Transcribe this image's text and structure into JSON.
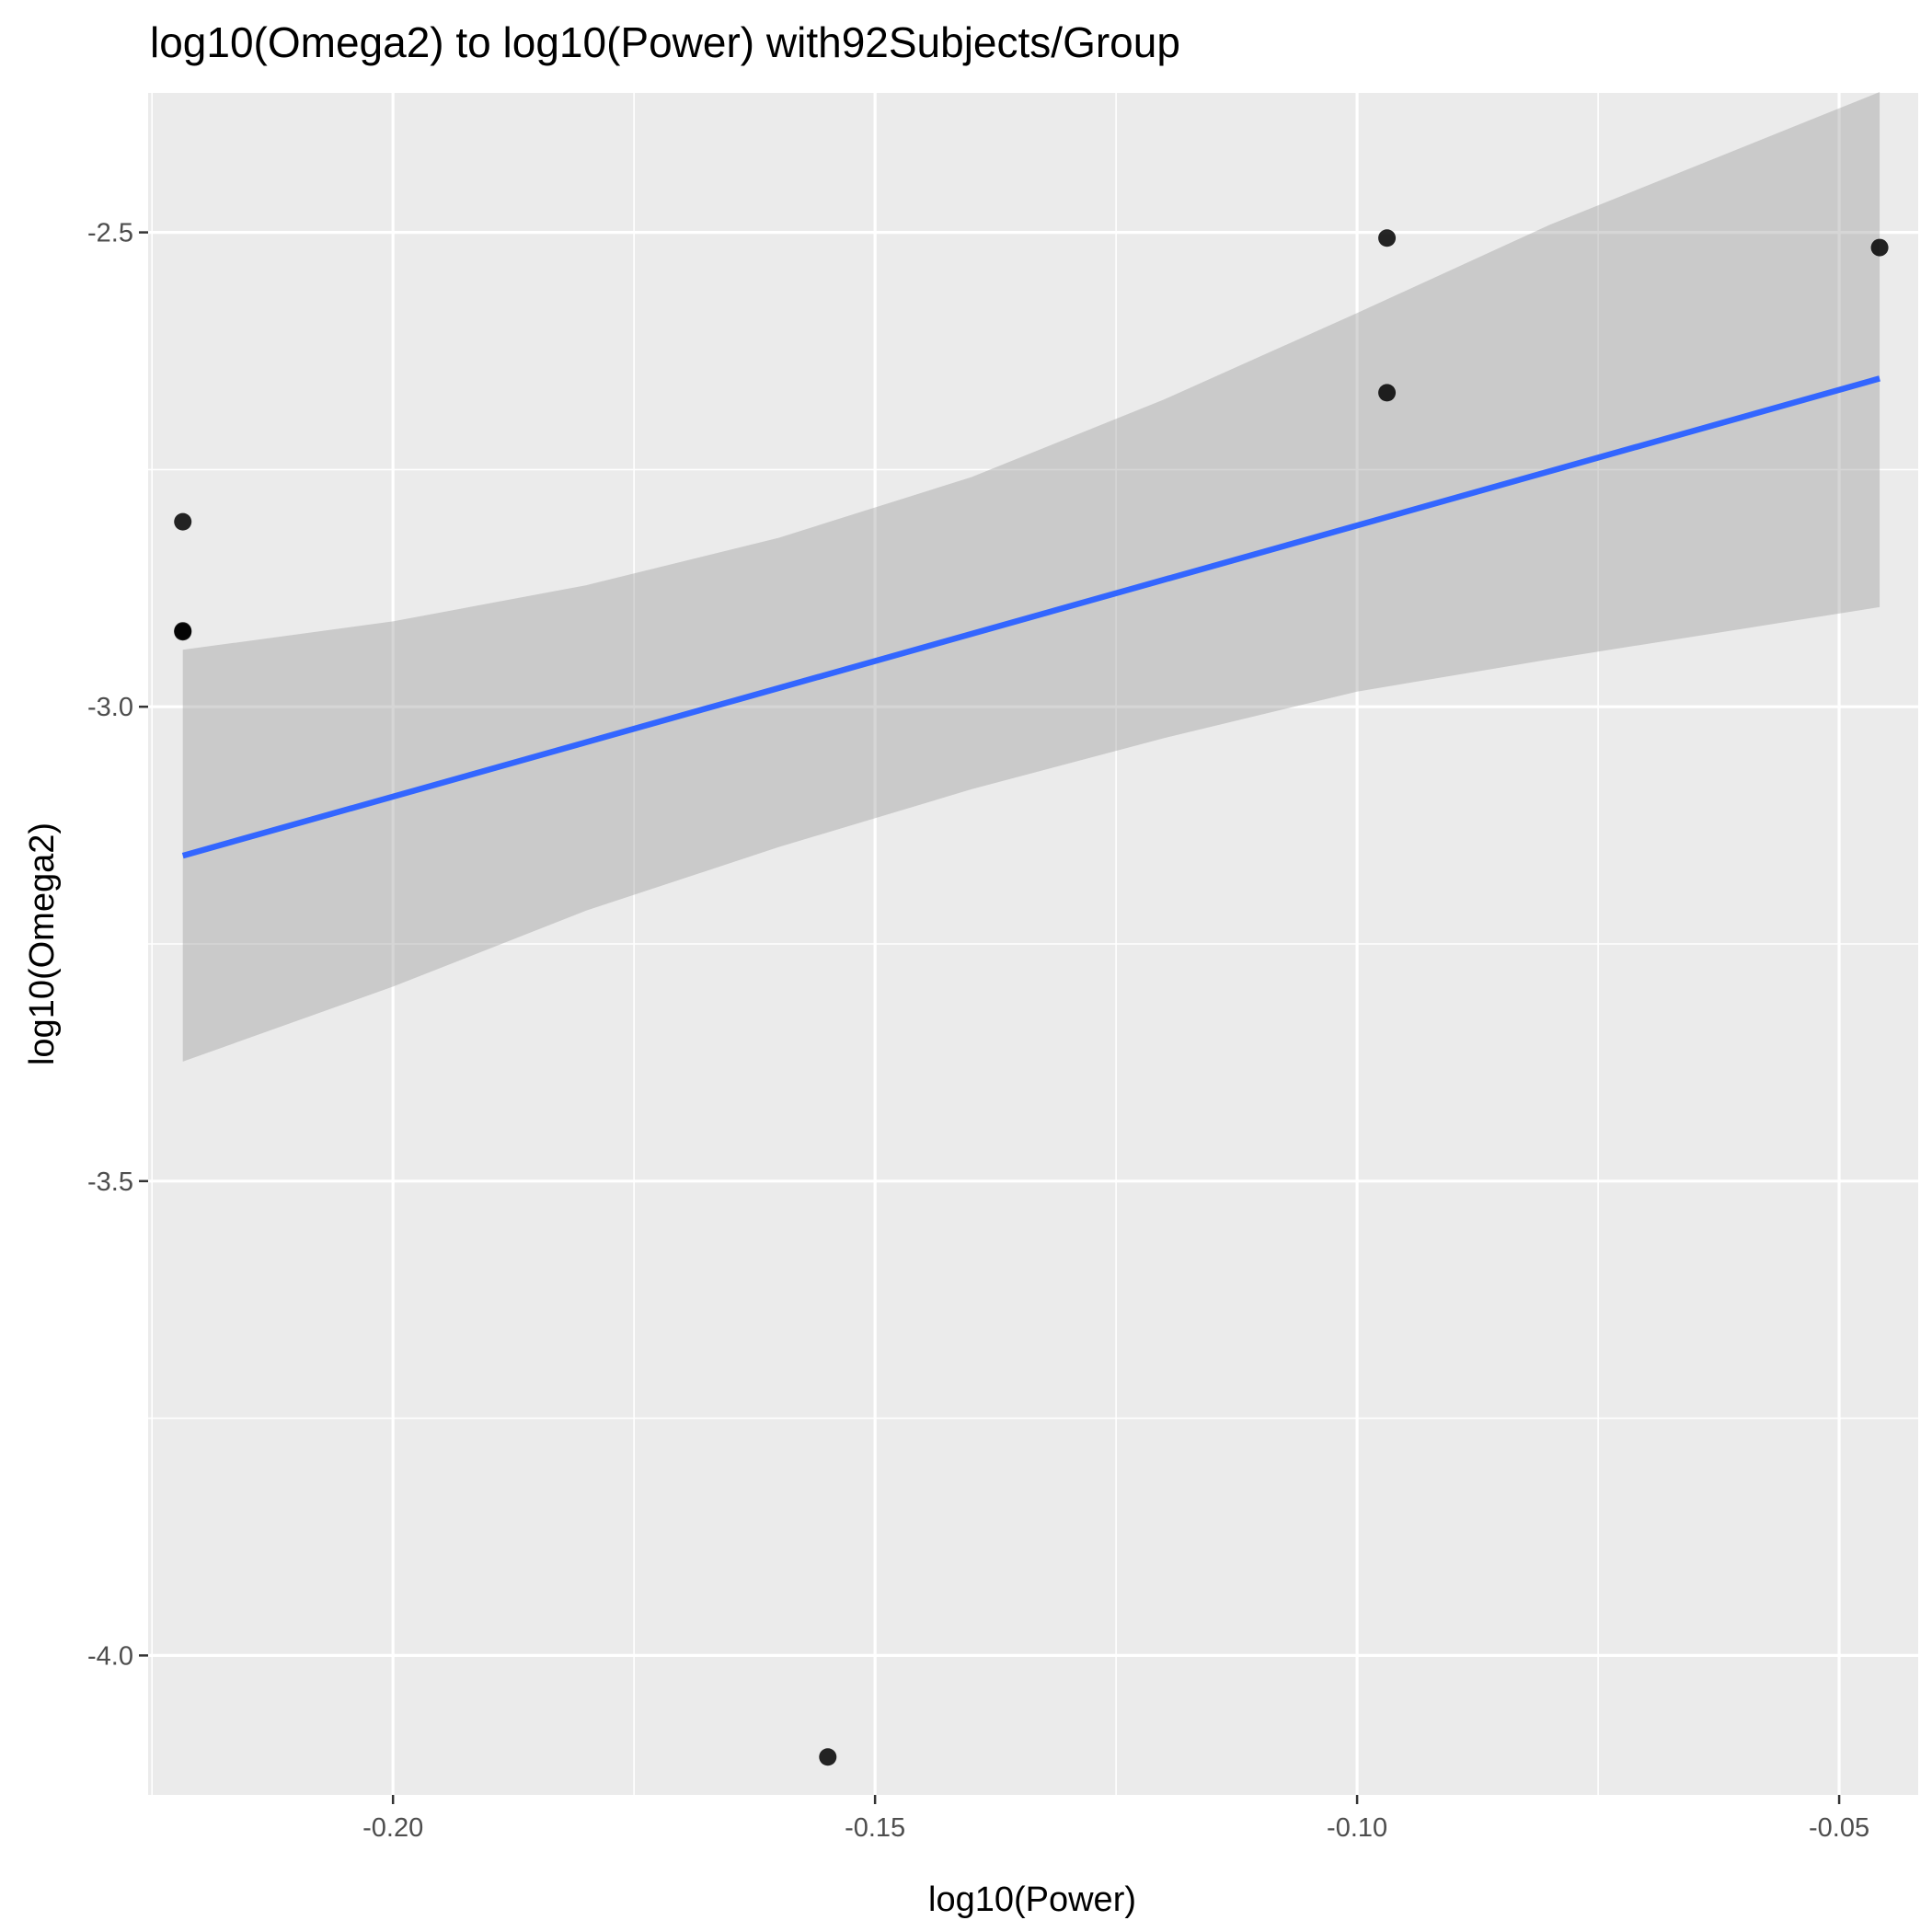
{
  "chart_data": {
    "type": "scatter",
    "title": "log10(Omega2) to log10(Power) with92Subjects/Group",
    "xlabel": "log10(Power)",
    "ylabel": "log10(Omega2)",
    "xlim": [
      -0.2254,
      -0.0418
    ],
    "ylim": [
      -4.147,
      -2.353
    ],
    "x_ticks": [
      -0.2,
      -0.15,
      -0.1,
      -0.05
    ],
    "x_tick_labels": [
      "-0.20",
      "-0.15",
      "-0.10",
      "-0.05"
    ],
    "y_ticks": [
      -4.0,
      -3.5,
      -3.0,
      -2.5
    ],
    "y_tick_labels": [
      "-4.0",
      "-3.5",
      "-3.0",
      "-2.5"
    ],
    "grid": true,
    "points": [
      {
        "x": -0.2218,
        "y": -2.805
      },
      {
        "x": -0.2218,
        "y": -2.92
      },
      {
        "x": -0.2218,
        "y": -2.921
      },
      {
        "x": -0.1549,
        "y": -4.107
      },
      {
        "x": -0.0969,
        "y": -2.506
      },
      {
        "x": -0.0969,
        "y": -2.669
      },
      {
        "x": -0.0458,
        "y": -2.516
      }
    ],
    "fit_line": {
      "method": "lm",
      "x": [
        -0.2218,
        -0.0458
      ],
      "y": [
        -3.157,
        -2.654
      ],
      "color": "#3366FF"
    },
    "confidence_band": {
      "x": [
        -0.2218,
        -0.2,
        -0.18,
        -0.16,
        -0.14,
        -0.12,
        -0.1,
        -0.08,
        -0.0458
      ],
      "lower": [
        -3.374,
        -3.295,
        -3.215,
        -3.148,
        -3.087,
        -3.033,
        -2.984,
        -2.95,
        -2.895
      ],
      "upper": [
        -2.94,
        -2.91,
        -2.872,
        -2.822,
        -2.758,
        -2.676,
        -2.585,
        -2.492,
        -2.352
      ],
      "color": "#999999"
    },
    "colors": {
      "panel_bg": "#EBEBEB",
      "grid": "#FFFFFF",
      "point": "#000000"
    }
  }
}
